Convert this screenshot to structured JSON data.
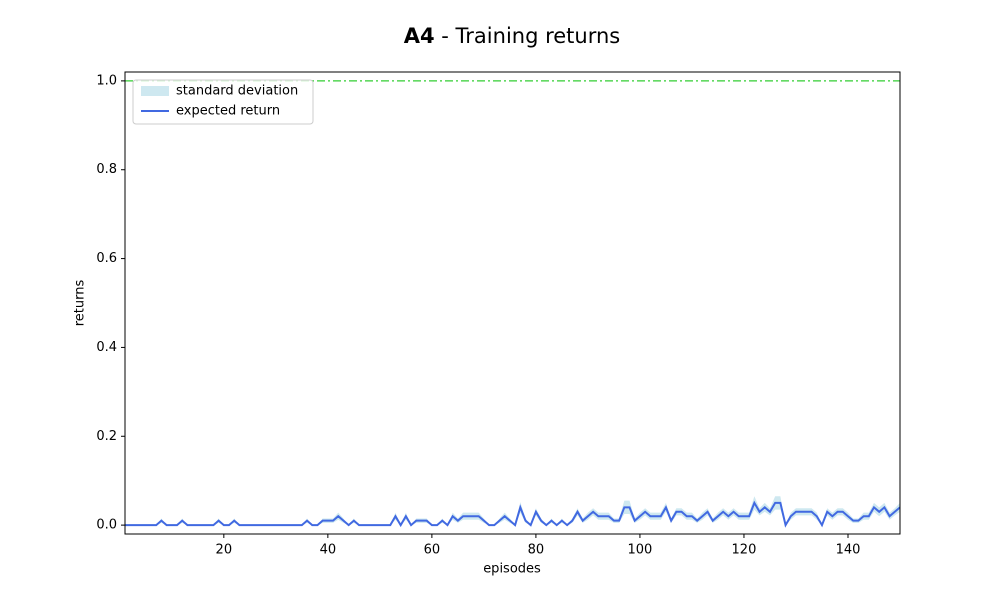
{
  "chart_data": {
    "type": "line",
    "title": {
      "bold": "A4",
      "rest": " - Training returns"
    },
    "xlabel": "episodes",
    "ylabel": "returns",
    "x": [
      1,
      2,
      3,
      4,
      5,
      6,
      7,
      8,
      9,
      10,
      11,
      12,
      13,
      14,
      15,
      16,
      17,
      18,
      19,
      20,
      21,
      22,
      23,
      24,
      25,
      26,
      27,
      28,
      29,
      30,
      31,
      32,
      33,
      34,
      35,
      36,
      37,
      38,
      39,
      40,
      41,
      42,
      43,
      44,
      45,
      46,
      47,
      48,
      49,
      50,
      51,
      52,
      53,
      54,
      55,
      56,
      57,
      58,
      59,
      60,
      61,
      62,
      63,
      64,
      65,
      66,
      67,
      68,
      69,
      70,
      71,
      72,
      73,
      74,
      75,
      76,
      77,
      78,
      79,
      80,
      81,
      82,
      83,
      84,
      85,
      86,
      87,
      88,
      89,
      90,
      91,
      92,
      93,
      94,
      95,
      96,
      97,
      98,
      99,
      100,
      101,
      102,
      103,
      104,
      105,
      106,
      107,
      108,
      109,
      110,
      111,
      112,
      113,
      114,
      115,
      116,
      117,
      118,
      119,
      120,
      121,
      122,
      123,
      124,
      125,
      126,
      127,
      128,
      129,
      130,
      131,
      132,
      133,
      134,
      135,
      136,
      137,
      138,
      139,
      140,
      141,
      142,
      143,
      144,
      145,
      146,
      147,
      148,
      149,
      150
    ],
    "series": [
      {
        "name": "standard deviation",
        "color": "#add8e6",
        "band": true,
        "values": [
          0,
          0,
          0,
          0,
          0,
          0,
          0,
          0.005,
          0,
          0,
          0,
          0.005,
          0,
          0,
          0,
          0,
          0,
          0,
          0.005,
          0,
          0,
          0.005,
          0,
          0,
          0,
          0,
          0,
          0,
          0,
          0,
          0,
          0,
          0,
          0,
          0,
          0.005,
          0,
          0,
          0.005,
          0.005,
          0.005,
          0.008,
          0.005,
          0,
          0.005,
          0,
          0,
          0,
          0,
          0,
          0,
          0,
          0.008,
          0,
          0.008,
          0,
          0.005,
          0.005,
          0.005,
          0,
          0,
          0.005,
          0,
          0.008,
          0.005,
          0.008,
          0.008,
          0.008,
          0.008,
          0.005,
          0,
          0,
          0.005,
          0.008,
          0.005,
          0,
          0.012,
          0.005,
          0,
          0.008,
          0.005,
          0,
          0.005,
          0,
          0.005,
          0,
          0.005,
          0.008,
          0.005,
          0.008,
          0.008,
          0.008,
          0.008,
          0.008,
          0.005,
          0.005,
          0.015,
          0.015,
          0.005,
          0.008,
          0.008,
          0.008,
          0.008,
          0.008,
          0.01,
          0.005,
          0.008,
          0.008,
          0.008,
          0.008,
          0.005,
          0.008,
          0.008,
          0.005,
          0.008,
          0.008,
          0.008,
          0.008,
          0.008,
          0.008,
          0.008,
          0.015,
          0.008,
          0.01,
          0.008,
          0.015,
          0.015,
          0,
          0.008,
          0.008,
          0.008,
          0.008,
          0.008,
          0.008,
          0,
          0.008,
          0.008,
          0.008,
          0.008,
          0.008,
          0.005,
          0.005,
          0.008,
          0.008,
          0.01,
          0.01,
          0.01,
          0.008,
          0.008,
          0.01
        ]
      },
      {
        "name": "expected return",
        "color": "#4169e1",
        "values": [
          0,
          0,
          0,
          0,
          0,
          0,
          0,
          0.01,
          0,
          0,
          0,
          0.01,
          0,
          0,
          0,
          0,
          0,
          0,
          0.01,
          0,
          0,
          0.01,
          0,
          0,
          0,
          0,
          0,
          0,
          0,
          0,
          0,
          0,
          0,
          0,
          0,
          0.01,
          0,
          0,
          0.01,
          0.01,
          0.01,
          0.02,
          0.01,
          0,
          0.01,
          0,
          0,
          0,
          0,
          0,
          0,
          0,
          0.02,
          0,
          0.02,
          0,
          0.01,
          0.01,
          0.01,
          0,
          0,
          0.01,
          0,
          0.02,
          0.01,
          0.02,
          0.02,
          0.02,
          0.02,
          0.01,
          0,
          0,
          0.01,
          0.02,
          0.01,
          0,
          0.04,
          0.01,
          0,
          0.03,
          0.01,
          0,
          0.01,
          0,
          0.01,
          0,
          0.01,
          0.03,
          0.01,
          0.02,
          0.03,
          0.02,
          0.02,
          0.02,
          0.01,
          0.01,
          0.04,
          0.04,
          0.01,
          0.02,
          0.03,
          0.02,
          0.02,
          0.02,
          0.04,
          0.01,
          0.03,
          0.03,
          0.02,
          0.02,
          0.01,
          0.02,
          0.03,
          0.01,
          0.02,
          0.03,
          0.02,
          0.03,
          0.02,
          0.02,
          0.02,
          0.05,
          0.03,
          0.04,
          0.03,
          0.05,
          0.05,
          0,
          0.02,
          0.03,
          0.03,
          0.03,
          0.03,
          0.02,
          0,
          0.03,
          0.02,
          0.03,
          0.03,
          0.02,
          0.01,
          0.01,
          0.02,
          0.02,
          0.04,
          0.03,
          0.04,
          0.02,
          0.03,
          0.04
        ]
      }
    ],
    "hline": {
      "value": 1,
      "color": "#32cd32"
    },
    "xlim": [
      1,
      150
    ],
    "ylim": [
      -0.02,
      1.02
    ],
    "xticks": [
      20,
      40,
      60,
      80,
      100,
      120,
      140
    ],
    "yticks": [
      {
        "value": 0,
        "label": "0.0"
      },
      0.2,
      0.4,
      0.6,
      0.8,
      {
        "value": 1,
        "label": "1.0"
      }
    ],
    "legend": "upper left"
  }
}
